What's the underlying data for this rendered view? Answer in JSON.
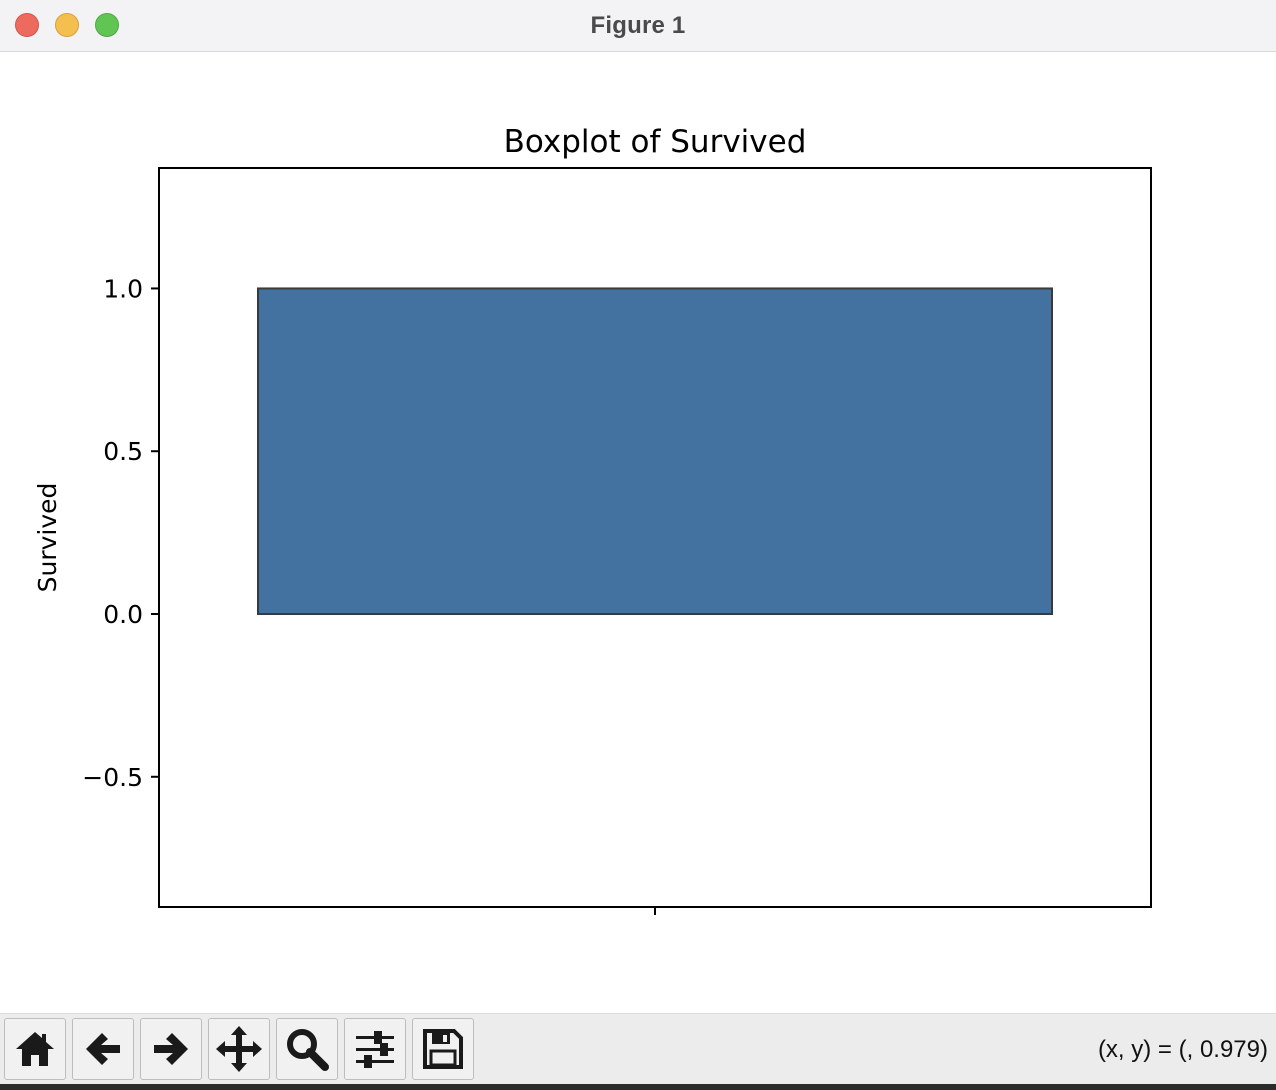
{
  "window": {
    "title": "Figure 1"
  },
  "toolbar": {
    "buttons": [
      {
        "name": "home-button",
        "icon": "home-icon"
      },
      {
        "name": "back-button",
        "icon": "arrow-left-icon"
      },
      {
        "name": "forward-button",
        "icon": "arrow-right-icon"
      },
      {
        "name": "pan-button",
        "icon": "move-icon"
      },
      {
        "name": "zoom-button",
        "icon": "magnifier-icon"
      },
      {
        "name": "configure-subplots-button",
        "icon": "sliders-icon"
      },
      {
        "name": "save-button",
        "icon": "floppy-disk-icon"
      }
    ],
    "coords": "(x, y) = (, 0.979)"
  },
  "colors": {
    "box_fill": "#4472a0",
    "box_edge": "#3a3a3a"
  },
  "chart_data": {
    "type": "box",
    "title": "Boxplot of Survived",
    "xlabel": "",
    "ylabel": "Survived",
    "ylim": [
      -0.9,
      1.37
    ],
    "yticks": [
      -0.5,
      0.0,
      0.5,
      1.0
    ],
    "ytick_labels": [
      "−0.5",
      "0.0",
      "0.5",
      "1.0"
    ],
    "xtick_labels": [
      ""
    ],
    "box": {
      "min": 0,
      "q1": 0,
      "median": 0,
      "q3": 1,
      "max": 1
    },
    "grid": false
  }
}
